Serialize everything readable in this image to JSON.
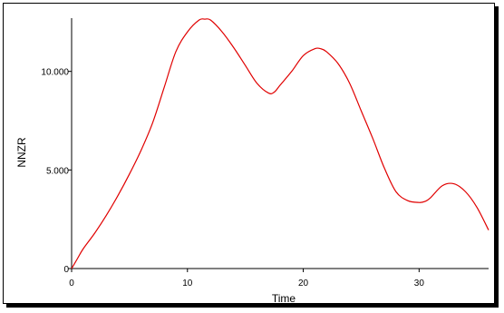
{
  "chart_data": {
    "type": "line",
    "title": "",
    "xlabel": "Time",
    "ylabel": "NNZR",
    "xlim": [
      0,
      36
    ],
    "ylim": [
      0,
      12700
    ],
    "x_ticks": [
      0,
      10,
      20,
      30
    ],
    "x_tick_labels": [
      "0",
      "10",
      "20",
      "30"
    ],
    "y_ticks": [
      0,
      5000,
      10000
    ],
    "y_tick_labels": [
      "0",
      "5.000",
      "10.000"
    ],
    "grid": false,
    "legend": "none",
    "series": [
      {
        "color": "#e00000",
        "x": [
          0,
          0.5,
          1,
          2,
          3,
          4,
          5,
          6,
          7,
          8,
          9,
          10,
          11,
          11.5,
          12,
          13,
          14,
          15,
          16,
          17,
          17.5,
          18,
          19,
          20,
          21,
          21.5,
          22,
          23,
          24,
          25,
          26,
          27,
          28,
          29,
          30,
          30.5,
          31,
          32,
          33,
          34,
          35,
          36
        ],
        "y": [
          0,
          500,
          1000,
          1800,
          2700,
          3700,
          4800,
          6000,
          7400,
          9200,
          11000,
          12000,
          12600,
          12650,
          12600,
          12000,
          11200,
          10300,
          9400,
          8900,
          8950,
          9300,
          10000,
          10800,
          11150,
          11150,
          11000,
          10400,
          9400,
          8000,
          6600,
          5100,
          3900,
          3450,
          3350,
          3400,
          3600,
          4200,
          4300,
          3900,
          3100,
          1950
        ]
      }
    ]
  }
}
